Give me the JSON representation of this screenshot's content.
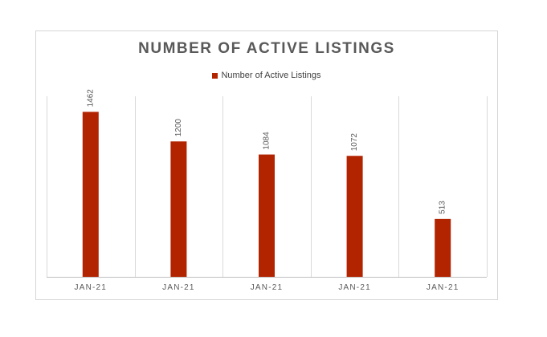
{
  "chart_data": {
    "type": "bar",
    "title": "NUMBER OF ACTIVE LISTINGS",
    "categories": [
      "JAN-21",
      "JAN-21",
      "JAN-21",
      "JAN-21",
      "JAN-21"
    ],
    "series": [
      {
        "name": "Number of Active Listings",
        "values": [
          1462,
          1200,
          1084,
          1072,
          513
        ],
        "color": "#b22400"
      }
    ],
    "data_labels": [
      "1462",
      "1200",
      "1084",
      "1072",
      "513"
    ],
    "ylim": [
      0,
      1600
    ],
    "grid": "vertical category separators",
    "legend_position": "top",
    "xlabel": "",
    "ylabel": ""
  }
}
